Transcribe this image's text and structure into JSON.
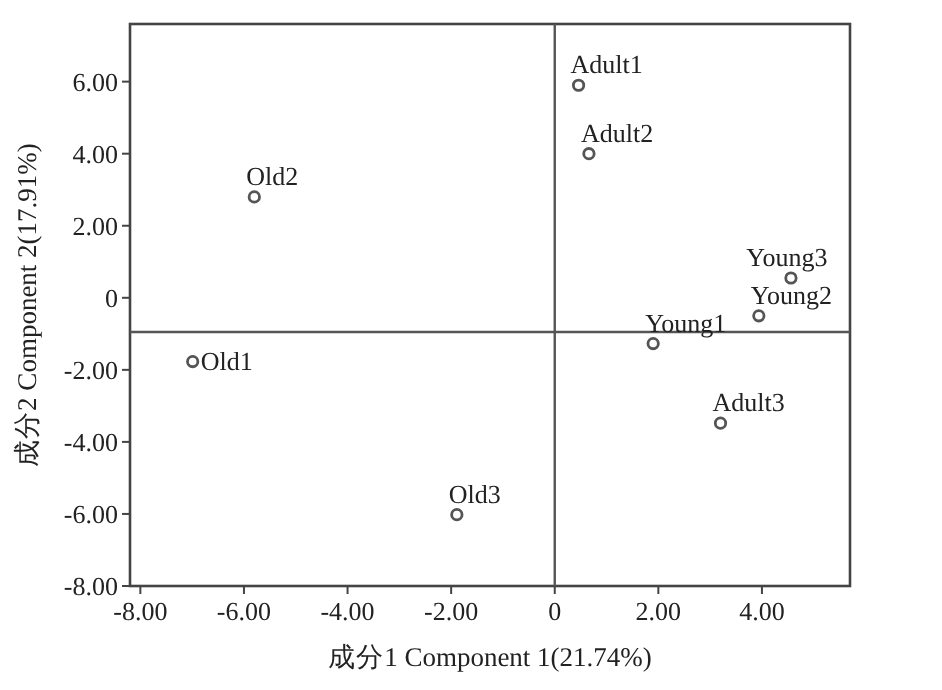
{
  "chart_data": {
    "type": "scatter",
    "xlabel": "成分1 Component 1(21.74%)",
    "ylabel": "成分2 Component 2(17.91%)",
    "marker": "circle",
    "xlim": [
      -8.2,
      5.7
    ],
    "ylim": [
      -8,
      7.6
    ],
    "xticks": [
      {
        "value": -8,
        "label": "-8.00"
      },
      {
        "value": -6,
        "label": "-6.00"
      },
      {
        "value": -4,
        "label": "-4.00"
      },
      {
        "value": -2,
        "label": "-2.00"
      },
      0,
      {
        "value": 2,
        "label": "2.00"
      },
      {
        "value": 4,
        "label": "4.00"
      }
    ],
    "yticks": [
      {
        "value": -8,
        "label": "-8.00"
      },
      {
        "value": -6,
        "label": "-6.00"
      },
      {
        "value": -4,
        "label": "-4.00"
      },
      {
        "value": -2,
        "label": "-2.00"
      },
      0,
      {
        "value": 2,
        "label": "2.00"
      },
      {
        "value": 4,
        "label": "4.00"
      },
      {
        "value": 6,
        "label": "6.00"
      }
    ],
    "series": [
      {
        "color": "#555555",
        "x": [
          0.46,
          0.66,
          -5.8,
          4.56,
          3.94,
          1.9,
          -6.99,
          3.2,
          -1.89
        ],
        "values": [
          5.9,
          4.0,
          2.8,
          0.55,
          -0.5,
          -1.27,
          -1.77,
          -3.48,
          -6.02
        ]
      }
    ],
    "annotations": [
      {
        "text": "Adult1",
        "x": 0.46,
        "y": 5.9
      },
      {
        "text": "Adult2",
        "x": 0.66,
        "y": 4.0
      },
      {
        "text": "Old2",
        "x": -5.8,
        "y": 2.8
      },
      {
        "text": "Young3",
        "x": 4.56,
        "y": 0.55
      },
      {
        "text": "Young2",
        "x": 3.94,
        "y": -0.5
      },
      {
        "text": "Young1",
        "x": 1.9,
        "y": -1.27
      },
      {
        "text": "Old1",
        "x": -6.99,
        "y": -1.77
      },
      {
        "text": "Adult3",
        "x": 3.2,
        "y": -3.48
      },
      {
        "text": "Old3",
        "x": -1.89,
        "y": -6.02
      }
    ],
    "ref_lines": [
      {
        "axis": "x",
        "value": 0,
        "color": "#555555"
      },
      {
        "axis": "y",
        "value": -0.95,
        "color": "#555555"
      }
    ]
  }
}
